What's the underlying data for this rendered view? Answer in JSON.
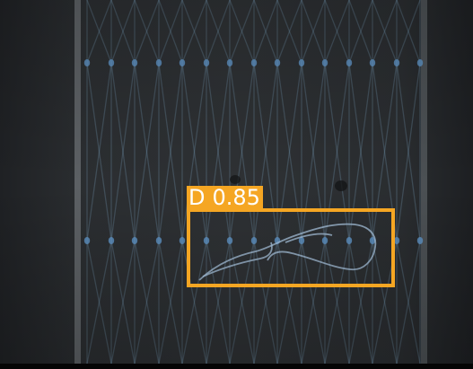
{
  "image": {
    "description_colors": {
      "background": "#2a2c2f",
      "yarn": "#7aa0c0",
      "node": "#5d8fbf",
      "bar_left": "#9aa0a3",
      "bar_right": "#7a8084"
    }
  },
  "detection": {
    "class_label": "D",
    "confidence": "0.85",
    "box_color": "#f5a623",
    "label_text_color": "#ffffff"
  }
}
